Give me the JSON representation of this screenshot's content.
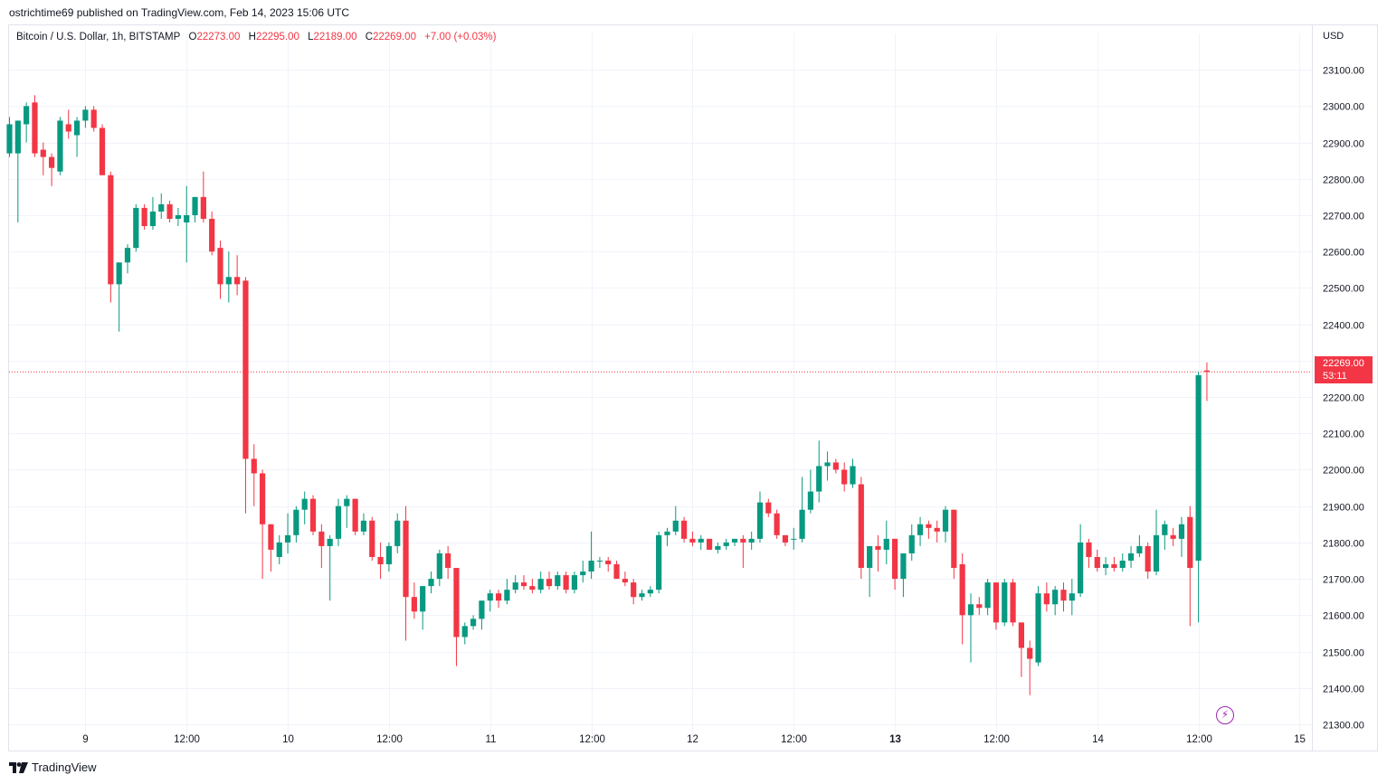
{
  "header": {
    "published_text": "ostrichtime69 published on TradingView.com, Feb 14, 2023 15:06 UTC"
  },
  "legend": {
    "symbol": "Bitcoin / U.S. Dollar, 1h, BITSTAMP",
    "open_label": "O",
    "open": "22273.00",
    "high_label": "H",
    "high": "22295.00",
    "low_label": "L",
    "low": "22189.00",
    "close_label": "C",
    "close": "22269.00",
    "change": "+7.00 (+0.03%)"
  },
  "price_axis": {
    "currency": "USD",
    "tag_price": "22269.00",
    "tag_countdown": "53:11"
  },
  "footer": {
    "brand": "TradingView"
  },
  "icons": {
    "flash": "lightning-icon",
    "logo": "tradingview-logo-icon"
  },
  "colors": {
    "up": "#089981",
    "down": "#f23645",
    "grid": "#f0f3fa",
    "text": "#131722"
  },
  "chart_data": {
    "type": "candlestick",
    "symbol": "BTCUSD",
    "exchange": "BITSTAMP",
    "interval": "1h",
    "ylim": [
      21200,
      23200
    ],
    "y_ticks": [
      21300,
      21400,
      21500,
      21600,
      21700,
      21800,
      21900,
      22000,
      22100,
      22200,
      22300,
      22400,
      22500,
      22600,
      22700,
      22800,
      22900,
      23000,
      23100
    ],
    "x_tick_labels": [
      {
        "label": "9",
        "index": 9
      },
      {
        "label": "12:00",
        "index": 21
      },
      {
        "label": "10",
        "index": 33
      },
      {
        "label": "12:00",
        "index": 45
      },
      {
        "label": "11",
        "index": 57
      },
      {
        "label": "12:00",
        "index": 69
      },
      {
        "label": "12",
        "index": 81
      },
      {
        "label": "12:00",
        "index": 93
      },
      {
        "label": "13",
        "index": 105
      },
      {
        "label": "12:00",
        "index": 117
      },
      {
        "label": "14",
        "index": 129
      },
      {
        "label": "12:00",
        "index": 141
      },
      {
        "label": "15",
        "index": 153
      }
    ],
    "last_price": 22269,
    "candles": [
      {
        "o": 22870,
        "h": 22970,
        "l": 22860,
        "c": 22950
      },
      {
        "o": 22870,
        "h": 22960,
        "l": 22680,
        "c": 22960
      },
      {
        "o": 22950,
        "h": 23010,
        "l": 22900,
        "c": 23000
      },
      {
        "o": 23010,
        "h": 23030,
        "l": 22860,
        "c": 22870
      },
      {
        "o": 22880,
        "h": 22900,
        "l": 22810,
        "c": 22860
      },
      {
        "o": 22860,
        "h": 22870,
        "l": 22780,
        "c": 22830
      },
      {
        "o": 22820,
        "h": 22970,
        "l": 22810,
        "c": 22960
      },
      {
        "o": 22950,
        "h": 22990,
        "l": 22910,
        "c": 22930
      },
      {
        "o": 22920,
        "h": 22970,
        "l": 22860,
        "c": 22960
      },
      {
        "o": 22960,
        "h": 23000,
        "l": 22940,
        "c": 22990
      },
      {
        "o": 22990,
        "h": 23000,
        "l": 22930,
        "c": 22940
      },
      {
        "o": 22940,
        "h": 22950,
        "l": 22810,
        "c": 22810
      },
      {
        "o": 22810,
        "h": 22820,
        "l": 22460,
        "c": 22510
      },
      {
        "o": 22510,
        "h": 22560,
        "l": 22380,
        "c": 22570
      },
      {
        "o": 22570,
        "h": 22620,
        "l": 22540,
        "c": 22610
      },
      {
        "o": 22610,
        "h": 22730,
        "l": 22600,
        "c": 22720
      },
      {
        "o": 22720,
        "h": 22730,
        "l": 22660,
        "c": 22670
      },
      {
        "o": 22670,
        "h": 22750,
        "l": 22660,
        "c": 22710
      },
      {
        "o": 22710,
        "h": 22760,
        "l": 22690,
        "c": 22730
      },
      {
        "o": 22730,
        "h": 22740,
        "l": 22680,
        "c": 22690
      },
      {
        "o": 22690,
        "h": 22720,
        "l": 22670,
        "c": 22700
      },
      {
        "o": 22680,
        "h": 22780,
        "l": 22570,
        "c": 22700
      },
      {
        "o": 22700,
        "h": 22750,
        "l": 22680,
        "c": 22750
      },
      {
        "o": 22750,
        "h": 22820,
        "l": 22680,
        "c": 22690
      },
      {
        "o": 22690,
        "h": 22710,
        "l": 22590,
        "c": 22600
      },
      {
        "o": 22610,
        "h": 22630,
        "l": 22470,
        "c": 22510
      },
      {
        "o": 22510,
        "h": 22600,
        "l": 22460,
        "c": 22530
      },
      {
        "o": 22530,
        "h": 22590,
        "l": 22480,
        "c": 22510
      },
      {
        "o": 22520,
        "h": 22530,
        "l": 21880,
        "c": 22030
      },
      {
        "o": 22030,
        "h": 22070,
        "l": 21900,
        "c": 21990
      },
      {
        "o": 21990,
        "h": 22000,
        "l": 21700,
        "c": 21850
      },
      {
        "o": 21850,
        "h": 21850,
        "l": 21720,
        "c": 21780
      },
      {
        "o": 21760,
        "h": 21820,
        "l": 21740,
        "c": 21800
      },
      {
        "o": 21800,
        "h": 21880,
        "l": 21770,
        "c": 21820
      },
      {
        "o": 21820,
        "h": 21900,
        "l": 21800,
        "c": 21890
      },
      {
        "o": 21890,
        "h": 21940,
        "l": 21850,
        "c": 21920
      },
      {
        "o": 21920,
        "h": 21930,
        "l": 21820,
        "c": 21830
      },
      {
        "o": 21830,
        "h": 21850,
        "l": 21730,
        "c": 21790
      },
      {
        "o": 21790,
        "h": 21820,
        "l": 21640,
        "c": 21810
      },
      {
        "o": 21810,
        "h": 21920,
        "l": 21790,
        "c": 21900
      },
      {
        "o": 21900,
        "h": 21930,
        "l": 21840,
        "c": 21920
      },
      {
        "o": 21920,
        "h": 21920,
        "l": 21820,
        "c": 21830
      },
      {
        "o": 21830,
        "h": 21880,
        "l": 21820,
        "c": 21860
      },
      {
        "o": 21860,
        "h": 21870,
        "l": 21750,
        "c": 21760
      },
      {
        "o": 21760,
        "h": 21800,
        "l": 21700,
        "c": 21740
      },
      {
        "o": 21740,
        "h": 21800,
        "l": 21720,
        "c": 21790
      },
      {
        "o": 21790,
        "h": 21880,
        "l": 21770,
        "c": 21860
      },
      {
        "o": 21860,
        "h": 21900,
        "l": 21530,
        "c": 21650
      },
      {
        "o": 21650,
        "h": 21690,
        "l": 21590,
        "c": 21610
      },
      {
        "o": 21610,
        "h": 21680,
        "l": 21560,
        "c": 21680
      },
      {
        "o": 21680,
        "h": 21720,
        "l": 21660,
        "c": 21700
      },
      {
        "o": 21700,
        "h": 21780,
        "l": 21680,
        "c": 21770
      },
      {
        "o": 21770,
        "h": 21790,
        "l": 21700,
        "c": 21730
      },
      {
        "o": 21730,
        "h": 21730,
        "l": 21460,
        "c": 21540
      },
      {
        "o": 21540,
        "h": 21580,
        "l": 21520,
        "c": 21570
      },
      {
        "o": 21570,
        "h": 21600,
        "l": 21560,
        "c": 21590
      },
      {
        "o": 21590,
        "h": 21640,
        "l": 21560,
        "c": 21640
      },
      {
        "o": 21640,
        "h": 21670,
        "l": 21610,
        "c": 21660
      },
      {
        "o": 21660,
        "h": 21670,
        "l": 21620,
        "c": 21640
      },
      {
        "o": 21640,
        "h": 21700,
        "l": 21630,
        "c": 21670
      },
      {
        "o": 21670,
        "h": 21710,
        "l": 21660,
        "c": 21690
      },
      {
        "o": 21690,
        "h": 21710,
        "l": 21670,
        "c": 21680
      },
      {
        "o": 21680,
        "h": 21700,
        "l": 21660,
        "c": 21670
      },
      {
        "o": 21670,
        "h": 21720,
        "l": 21660,
        "c": 21700
      },
      {
        "o": 21700,
        "h": 21720,
        "l": 21670,
        "c": 21680
      },
      {
        "o": 21680,
        "h": 21720,
        "l": 21670,
        "c": 21710
      },
      {
        "o": 21710,
        "h": 21720,
        "l": 21660,
        "c": 21670
      },
      {
        "o": 21670,
        "h": 21720,
        "l": 21660,
        "c": 21710
      },
      {
        "o": 21710,
        "h": 21750,
        "l": 21690,
        "c": 21720
      },
      {
        "o": 21720,
        "h": 21830,
        "l": 21700,
        "c": 21750
      },
      {
        "o": 21750,
        "h": 21760,
        "l": 21730,
        "c": 21750
      },
      {
        "o": 21750,
        "h": 21760,
        "l": 21720,
        "c": 21740
      },
      {
        "o": 21740,
        "h": 21750,
        "l": 21700,
        "c": 21700
      },
      {
        "o": 21700,
        "h": 21720,
        "l": 21680,
        "c": 21690
      },
      {
        "o": 21690,
        "h": 21700,
        "l": 21630,
        "c": 21650
      },
      {
        "o": 21650,
        "h": 21670,
        "l": 21640,
        "c": 21660
      },
      {
        "o": 21660,
        "h": 21680,
        "l": 21650,
        "c": 21670
      },
      {
        "o": 21670,
        "h": 21830,
        "l": 21660,
        "c": 21820
      },
      {
        "o": 21820,
        "h": 21840,
        "l": 21790,
        "c": 21830
      },
      {
        "o": 21830,
        "h": 21900,
        "l": 21820,
        "c": 21860
      },
      {
        "o": 21860,
        "h": 21870,
        "l": 21800,
        "c": 21810
      },
      {
        "o": 21810,
        "h": 21830,
        "l": 21790,
        "c": 21800
      },
      {
        "o": 21800,
        "h": 21820,
        "l": 21780,
        "c": 21810
      },
      {
        "o": 21810,
        "h": 21810,
        "l": 21780,
        "c": 21780
      },
      {
        "o": 21780,
        "h": 21800,
        "l": 21770,
        "c": 21790
      },
      {
        "o": 21790,
        "h": 21810,
        "l": 21780,
        "c": 21800
      },
      {
        "o": 21800,
        "h": 21810,
        "l": 21790,
        "c": 21810
      },
      {
        "o": 21810,
        "h": 21820,
        "l": 21730,
        "c": 21800
      },
      {
        "o": 21800,
        "h": 21830,
        "l": 21780,
        "c": 21810
      },
      {
        "o": 21810,
        "h": 21940,
        "l": 21800,
        "c": 21910
      },
      {
        "o": 21910,
        "h": 21920,
        "l": 21870,
        "c": 21880
      },
      {
        "o": 21880,
        "h": 21890,
        "l": 21810,
        "c": 21820
      },
      {
        "o": 21820,
        "h": 21820,
        "l": 21790,
        "c": 21800
      },
      {
        "o": 21810,
        "h": 21840,
        "l": 21780,
        "c": 21810
      },
      {
        "o": 21810,
        "h": 21980,
        "l": 21800,
        "c": 21890
      },
      {
        "o": 21890,
        "h": 22000,
        "l": 21880,
        "c": 21940
      },
      {
        "o": 21940,
        "h": 22080,
        "l": 21910,
        "c": 22010
      },
      {
        "o": 22010,
        "h": 22050,
        "l": 21970,
        "c": 22020
      },
      {
        "o": 22020,
        "h": 22030,
        "l": 21990,
        "c": 22000
      },
      {
        "o": 22000,
        "h": 22020,
        "l": 21940,
        "c": 21960
      },
      {
        "o": 21960,
        "h": 22030,
        "l": 21950,
        "c": 22010
      },
      {
        "o": 21960,
        "h": 21980,
        "l": 21700,
        "c": 21730
      },
      {
        "o": 21730,
        "h": 21790,
        "l": 21650,
        "c": 21790
      },
      {
        "o": 21790,
        "h": 21820,
        "l": 21720,
        "c": 21780
      },
      {
        "o": 21780,
        "h": 21860,
        "l": 21740,
        "c": 21810
      },
      {
        "o": 21810,
        "h": 21810,
        "l": 21670,
        "c": 21700
      },
      {
        "o": 21700,
        "h": 21770,
        "l": 21650,
        "c": 21770
      },
      {
        "o": 21770,
        "h": 21850,
        "l": 21750,
        "c": 21820
      },
      {
        "o": 21820,
        "h": 21870,
        "l": 21790,
        "c": 21850
      },
      {
        "o": 21850,
        "h": 21860,
        "l": 21810,
        "c": 21840
      },
      {
        "o": 21840,
        "h": 21860,
        "l": 21800,
        "c": 21830
      },
      {
        "o": 21830,
        "h": 21900,
        "l": 21800,
        "c": 21890
      },
      {
        "o": 21890,
        "h": 21890,
        "l": 21700,
        "c": 21730
      },
      {
        "o": 21740,
        "h": 21770,
        "l": 21520,
        "c": 21600
      },
      {
        "o": 21600,
        "h": 21660,
        "l": 21470,
        "c": 21630
      },
      {
        "o": 21630,
        "h": 21650,
        "l": 21600,
        "c": 21620
      },
      {
        "o": 21620,
        "h": 21700,
        "l": 21600,
        "c": 21690
      },
      {
        "o": 21690,
        "h": 21690,
        "l": 21560,
        "c": 21580
      },
      {
        "o": 21580,
        "h": 21700,
        "l": 21570,
        "c": 21690
      },
      {
        "o": 21690,
        "h": 21700,
        "l": 21570,
        "c": 21580
      },
      {
        "o": 21580,
        "h": 21580,
        "l": 21430,
        "c": 21510
      },
      {
        "o": 21510,
        "h": 21530,
        "l": 21380,
        "c": 21480
      },
      {
        "o": 21470,
        "h": 21680,
        "l": 21460,
        "c": 21660
      },
      {
        "o": 21660,
        "h": 21690,
        "l": 21610,
        "c": 21630
      },
      {
        "o": 21630,
        "h": 21680,
        "l": 21600,
        "c": 21670
      },
      {
        "o": 21670,
        "h": 21690,
        "l": 21610,
        "c": 21640
      },
      {
        "o": 21640,
        "h": 21700,
        "l": 21600,
        "c": 21660
      },
      {
        "o": 21660,
        "h": 21850,
        "l": 21650,
        "c": 21800
      },
      {
        "o": 21800,
        "h": 21810,
        "l": 21730,
        "c": 21760
      },
      {
        "o": 21760,
        "h": 21780,
        "l": 21720,
        "c": 21730
      },
      {
        "o": 21730,
        "h": 21760,
        "l": 21710,
        "c": 21740
      },
      {
        "o": 21740,
        "h": 21760,
        "l": 21720,
        "c": 21730
      },
      {
        "o": 21730,
        "h": 21770,
        "l": 21720,
        "c": 21750
      },
      {
        "o": 21750,
        "h": 21790,
        "l": 21730,
        "c": 21770
      },
      {
        "o": 21770,
        "h": 21820,
        "l": 21760,
        "c": 21790
      },
      {
        "o": 21790,
        "h": 21800,
        "l": 21700,
        "c": 21720
      },
      {
        "o": 21720,
        "h": 21890,
        "l": 21710,
        "c": 21820
      },
      {
        "o": 21820,
        "h": 21860,
        "l": 21780,
        "c": 21850
      },
      {
        "o": 21820,
        "h": 21840,
        "l": 21790,
        "c": 21810
      },
      {
        "o": 21810,
        "h": 21870,
        "l": 21760,
        "c": 21850
      },
      {
        "o": 21870,
        "h": 21900,
        "l": 21570,
        "c": 21730
      },
      {
        "o": 21750,
        "h": 22270,
        "l": 21580,
        "c": 22260
      },
      {
        "o": 22273,
        "h": 22295,
        "l": 22189,
        "c": 22269
      }
    ]
  }
}
